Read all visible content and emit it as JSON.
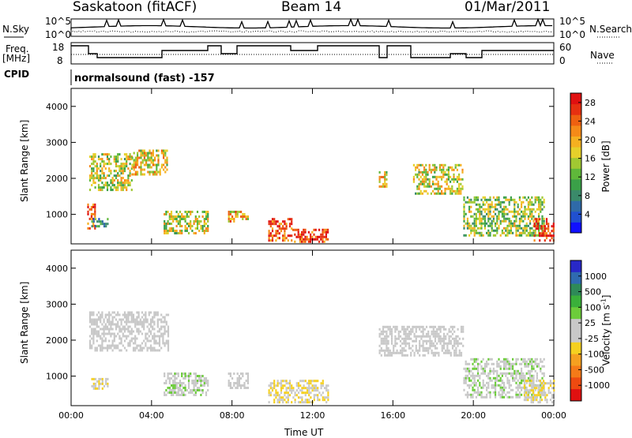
{
  "header": {
    "station": "Saskatoon (fitACF)",
    "beam": "Beam 14",
    "date": "01/Mar/2011"
  },
  "top_panels": {
    "nsky_label": "N.Sky",
    "nsky_ticks": [
      "10^5",
      "10^0"
    ],
    "nsearch_label": "N.Search",
    "nsearch_ticks": [
      "10^5",
      "10^0"
    ],
    "freq_label": "Freq.",
    "freq_unit": "[MHz]",
    "freq_ticks": [
      "18",
      "8"
    ],
    "nave_label": "Nave",
    "nave_ticks": [
      "60",
      "0"
    ],
    "cpid_label": "CPID",
    "cpid_text": "normalsound (fast) -157"
  },
  "chart_data": [
    {
      "type": "heatmap",
      "title": "",
      "xlabel": "Time UT",
      "ylabel": "Slant Range [km]",
      "xlim": [
        0,
        24
      ],
      "ylim": [
        180,
        4500
      ],
      "x_ticks": [
        "00:00",
        "04:00",
        "08:00",
        "12:00",
        "16:00",
        "20:00",
        "00:00"
      ],
      "y_ticks": [
        1000,
        2000,
        3000,
        4000
      ],
      "colorbar": {
        "label": "Power [dB]",
        "ticks": [
          4,
          8,
          12,
          16,
          20,
          24,
          28
        ],
        "range": [
          0,
          30
        ],
        "colors": [
          "#1010ff",
          "#2050d0",
          "#2f6aa8",
          "#3a8a6a",
          "#3aa048",
          "#5fb83a",
          "#a0c832",
          "#e6d02a",
          "#f5b020",
          "#f58a18",
          "#ee6010",
          "#e63010",
          "#e01010"
        ]
      },
      "echo_regions": [
        {
          "t_start": 0.9,
          "t_end": 3.0,
          "range_start": 1700,
          "range_end": 2700,
          "power_db": 16
        },
        {
          "t_start": 3.0,
          "t_end": 4.8,
          "range_start": 2100,
          "range_end": 2800,
          "power_db": 18
        },
        {
          "t_start": 0.8,
          "t_end": 1.2,
          "range_start": 600,
          "range_end": 1300,
          "power_db": 26
        },
        {
          "t_start": 1.0,
          "t_end": 1.8,
          "range_start": 700,
          "range_end": 900,
          "power_db": 8
        },
        {
          "t_start": 4.6,
          "t_end": 6.8,
          "range_start": 500,
          "range_end": 1100,
          "power_db": 16
        },
        {
          "t_start": 7.8,
          "t_end": 8.8,
          "range_start": 800,
          "range_end": 1100,
          "power_db": 20
        },
        {
          "t_start": 9.8,
          "t_end": 11.0,
          "range_start": 300,
          "range_end": 900,
          "power_db": 26
        },
        {
          "t_start": 11.0,
          "t_end": 12.8,
          "range_start": 250,
          "range_end": 600,
          "power_db": 26
        },
        {
          "t_start": 15.3,
          "t_end": 15.7,
          "range_start": 1800,
          "range_end": 2200,
          "power_db": 18
        },
        {
          "t_start": 17.0,
          "t_end": 19.5,
          "range_start": 1600,
          "range_end": 2400,
          "power_db": 16
        },
        {
          "t_start": 19.5,
          "t_end": 23.5,
          "range_start": 400,
          "range_end": 1500,
          "power_db": 14
        },
        {
          "t_start": 23.0,
          "t_end": 24.0,
          "range_start": 300,
          "range_end": 900,
          "power_db": 28
        }
      ]
    },
    {
      "type": "heatmap",
      "title": "",
      "xlabel": "Time UT",
      "ylabel": "Slant Range [km]",
      "xlim": [
        0,
        24
      ],
      "ylim": [
        180,
        4500
      ],
      "x_ticks": [
        "00:00",
        "04:00",
        "08:00",
        "12:00",
        "16:00",
        "20:00",
        "00:00"
      ],
      "y_ticks": [
        1000,
        2000,
        3000,
        4000
      ],
      "colorbar": {
        "label": "Velocity [m s^-1]",
        "ticks": [
          "1000",
          "500",
          "100",
          "25",
          "-25",
          "-100",
          "-500",
          "-1000"
        ],
        "colors": [
          "#2828c8",
          "#2f6ab0",
          "#2e8a58",
          "#3ab03a",
          "#6ccc3a",
          "#c8c8c8",
          "#c8c8c8",
          "#f5d020",
          "#f5a020",
          "#f57a18",
          "#ee4a10",
          "#e01010"
        ]
      },
      "echo_regions": [
        {
          "t_start": 0.9,
          "t_end": 4.8,
          "range_start": 1700,
          "range_end": 2800,
          "velocity": 0
        },
        {
          "t_start": 1.0,
          "t_end": 1.8,
          "range_start": 650,
          "range_end": 950,
          "velocity": -150
        },
        {
          "t_start": 4.6,
          "t_end": 6.8,
          "range_start": 500,
          "range_end": 1100,
          "velocity": 100
        },
        {
          "t_start": 7.8,
          "t_end": 8.8,
          "range_start": 700,
          "range_end": 1100,
          "velocity": 0
        },
        {
          "t_start": 9.8,
          "t_end": 12.8,
          "range_start": 250,
          "range_end": 900,
          "velocity": -150
        },
        {
          "t_start": 15.3,
          "t_end": 19.5,
          "range_start": 1600,
          "range_end": 2400,
          "velocity": 0
        },
        {
          "t_start": 19.5,
          "t_end": 23.5,
          "range_start": 400,
          "range_end": 1500,
          "velocity": 100
        },
        {
          "t_start": 22.5,
          "t_end": 24.0,
          "range_start": 300,
          "range_end": 900,
          "velocity": -150
        }
      ]
    }
  ]
}
